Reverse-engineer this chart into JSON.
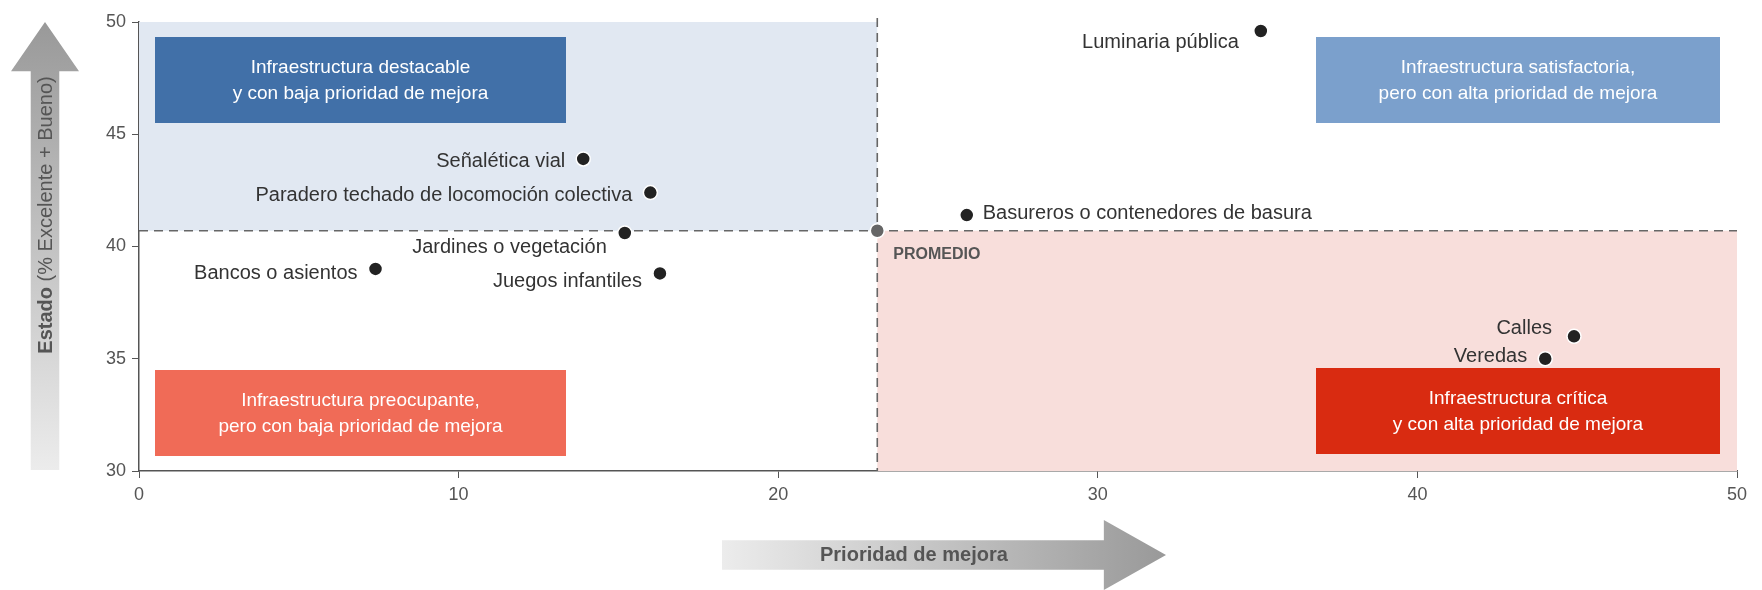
{
  "chart_data": {
    "type": "scatter",
    "xlabel": "Prioridad de mejora",
    "ylabel": "Estado (% Excelente + Bueno)",
    "xlim": [
      0,
      50
    ],
    "xticks": [
      0,
      10,
      20,
      30,
      40,
      50
    ],
    "ylim": [
      30,
      50
    ],
    "yticks": [
      30,
      35,
      40,
      45,
      50
    ],
    "grid": false,
    "legend": false,
    "marker": "circle",
    "series": [
      {
        "name": "Luminaria pública",
        "color": "#222222",
        "x": [
          35.1
        ],
        "values": [
          49.6
        ]
      },
      {
        "name": "Señalética vial",
        "color": "#222222",
        "x": [
          13.9
        ],
        "values": [
          43.9
        ]
      },
      {
        "name": "Paradero techado de locomoción colectiva",
        "color": "#222222",
        "x": [
          16.0
        ],
        "values": [
          42.4
        ]
      },
      {
        "name": "Jardines o vegetación",
        "color": "#222222",
        "x": [
          15.2
        ],
        "values": [
          40.6
        ]
      },
      {
        "name": "Bancos o asientos",
        "color": "#222222",
        "x": [
          7.4
        ],
        "values": [
          39.0
        ]
      },
      {
        "name": "Juegos infantiles",
        "color": "#222222",
        "x": [
          16.3
        ],
        "values": [
          38.8
        ]
      },
      {
        "name": "Basureros o contenedores de basura",
        "color": "#222222",
        "x": [
          25.9
        ],
        "values": [
          41.4
        ]
      },
      {
        "name": "Calles",
        "color": "#222222",
        "x": [
          44.9
        ],
        "values": [
          36.0
        ]
      },
      {
        "name": "Veredas",
        "color": "#222222",
        "x": [
          44.0
        ],
        "values": [
          35.0
        ]
      },
      {
        "name": "PROMEDIO",
        "color": "#666666",
        "x": [
          23.1
        ],
        "values": [
          40.7
        ]
      }
    ],
    "bands": [
      {
        "axis": "x",
        "from": 0,
        "to": 23.1,
        "color": "#e1e8f2"
      },
      {
        "axis": "x",
        "from": 23.1,
        "to": 50,
        "color": "#f8dedb"
      }
    ],
    "ref_lines": [
      {
        "axis": "x",
        "value": 23.1,
        "color": "#666666",
        "line_style": "dashed"
      },
      {
        "axis": "y",
        "value": 40.7,
        "color": "#666666",
        "line_style": "dashed"
      }
    ],
    "annotations": [
      "Infraestructura destacable\ny con baja prioridad de mejora",
      "Infraestructura satisfactoria,\npero con alta prioridad de mejora",
      "Infraestructura preocupante,\npero con baja prioridad de mejora",
      "Infraestructura crítica\ny con alta prioridad de mejora"
    ]
  }
}
